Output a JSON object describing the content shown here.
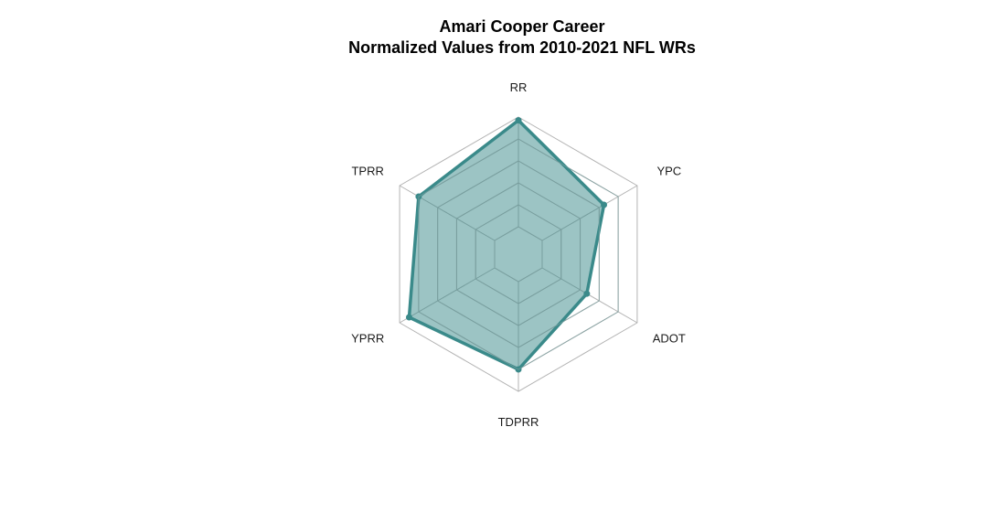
{
  "chart_data": {
    "type": "radar",
    "title": "Amari Cooper Career",
    "subtitle": "Normalized Values from 2010-2021 NFL WRs",
    "axes": [
      "RR",
      "YPC",
      "ADOT",
      "TDPRR",
      "YPRR",
      "TPRR"
    ],
    "series": [
      {
        "values": [
          0.97,
          0.65,
          0.47,
          0.8,
          0.9,
          0.8
        ]
      }
    ],
    "range": [
      0,
      1
    ],
    "grid_levels": [
      0.2,
      0.4,
      0.6,
      0.8,
      1.0
    ],
    "grid": true,
    "legend": "none",
    "colors": {
      "fill": "#3a8a8a",
      "stroke": "#3a8a8a",
      "grid": "#b3b3b3",
      "inner_grid": "#7a9e9e"
    }
  }
}
